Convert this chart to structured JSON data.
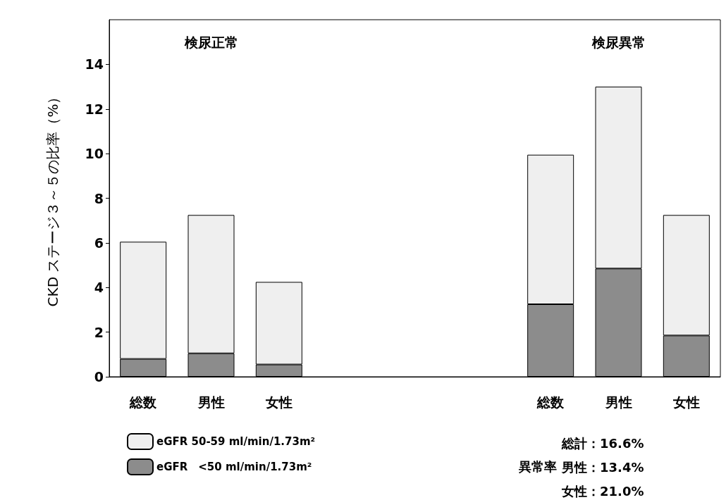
{
  "chart_data": {
    "type": "bar",
    "stacked": true,
    "categories": [
      "総数",
      "男性",
      "女性",
      null,
      null,
      null,
      "総数",
      "男性",
      "女性"
    ],
    "series": [
      {
        "name": "eGFR　<50 ml/min/1.73m²",
        "color": "#8c8c8c",
        "values": [
          0.8,
          1.05,
          0.55,
          null,
          null,
          null,
          3.25,
          4.85,
          1.85
        ]
      },
      {
        "name": "eGFR 50-59 ml/min/1.73m²",
        "color": "#efefef",
        "values": [
          5.25,
          6.2,
          3.7,
          null,
          null,
          null,
          6.7,
          8.15,
          5.4
        ]
      }
    ],
    "ylabel": "CKD ステージ３～５の比率（%）",
    "ylim": [
      0,
      16
    ],
    "yticks": [
      0,
      2,
      4,
      6,
      8,
      10,
      12,
      14
    ],
    "grid": false,
    "legend": "bottom left",
    "annotations": [
      "検尿正常",
      "検尿異常",
      "異常率",
      "総計：16.6%",
      "男性：13.4%",
      "女性：21.0%"
    ]
  }
}
